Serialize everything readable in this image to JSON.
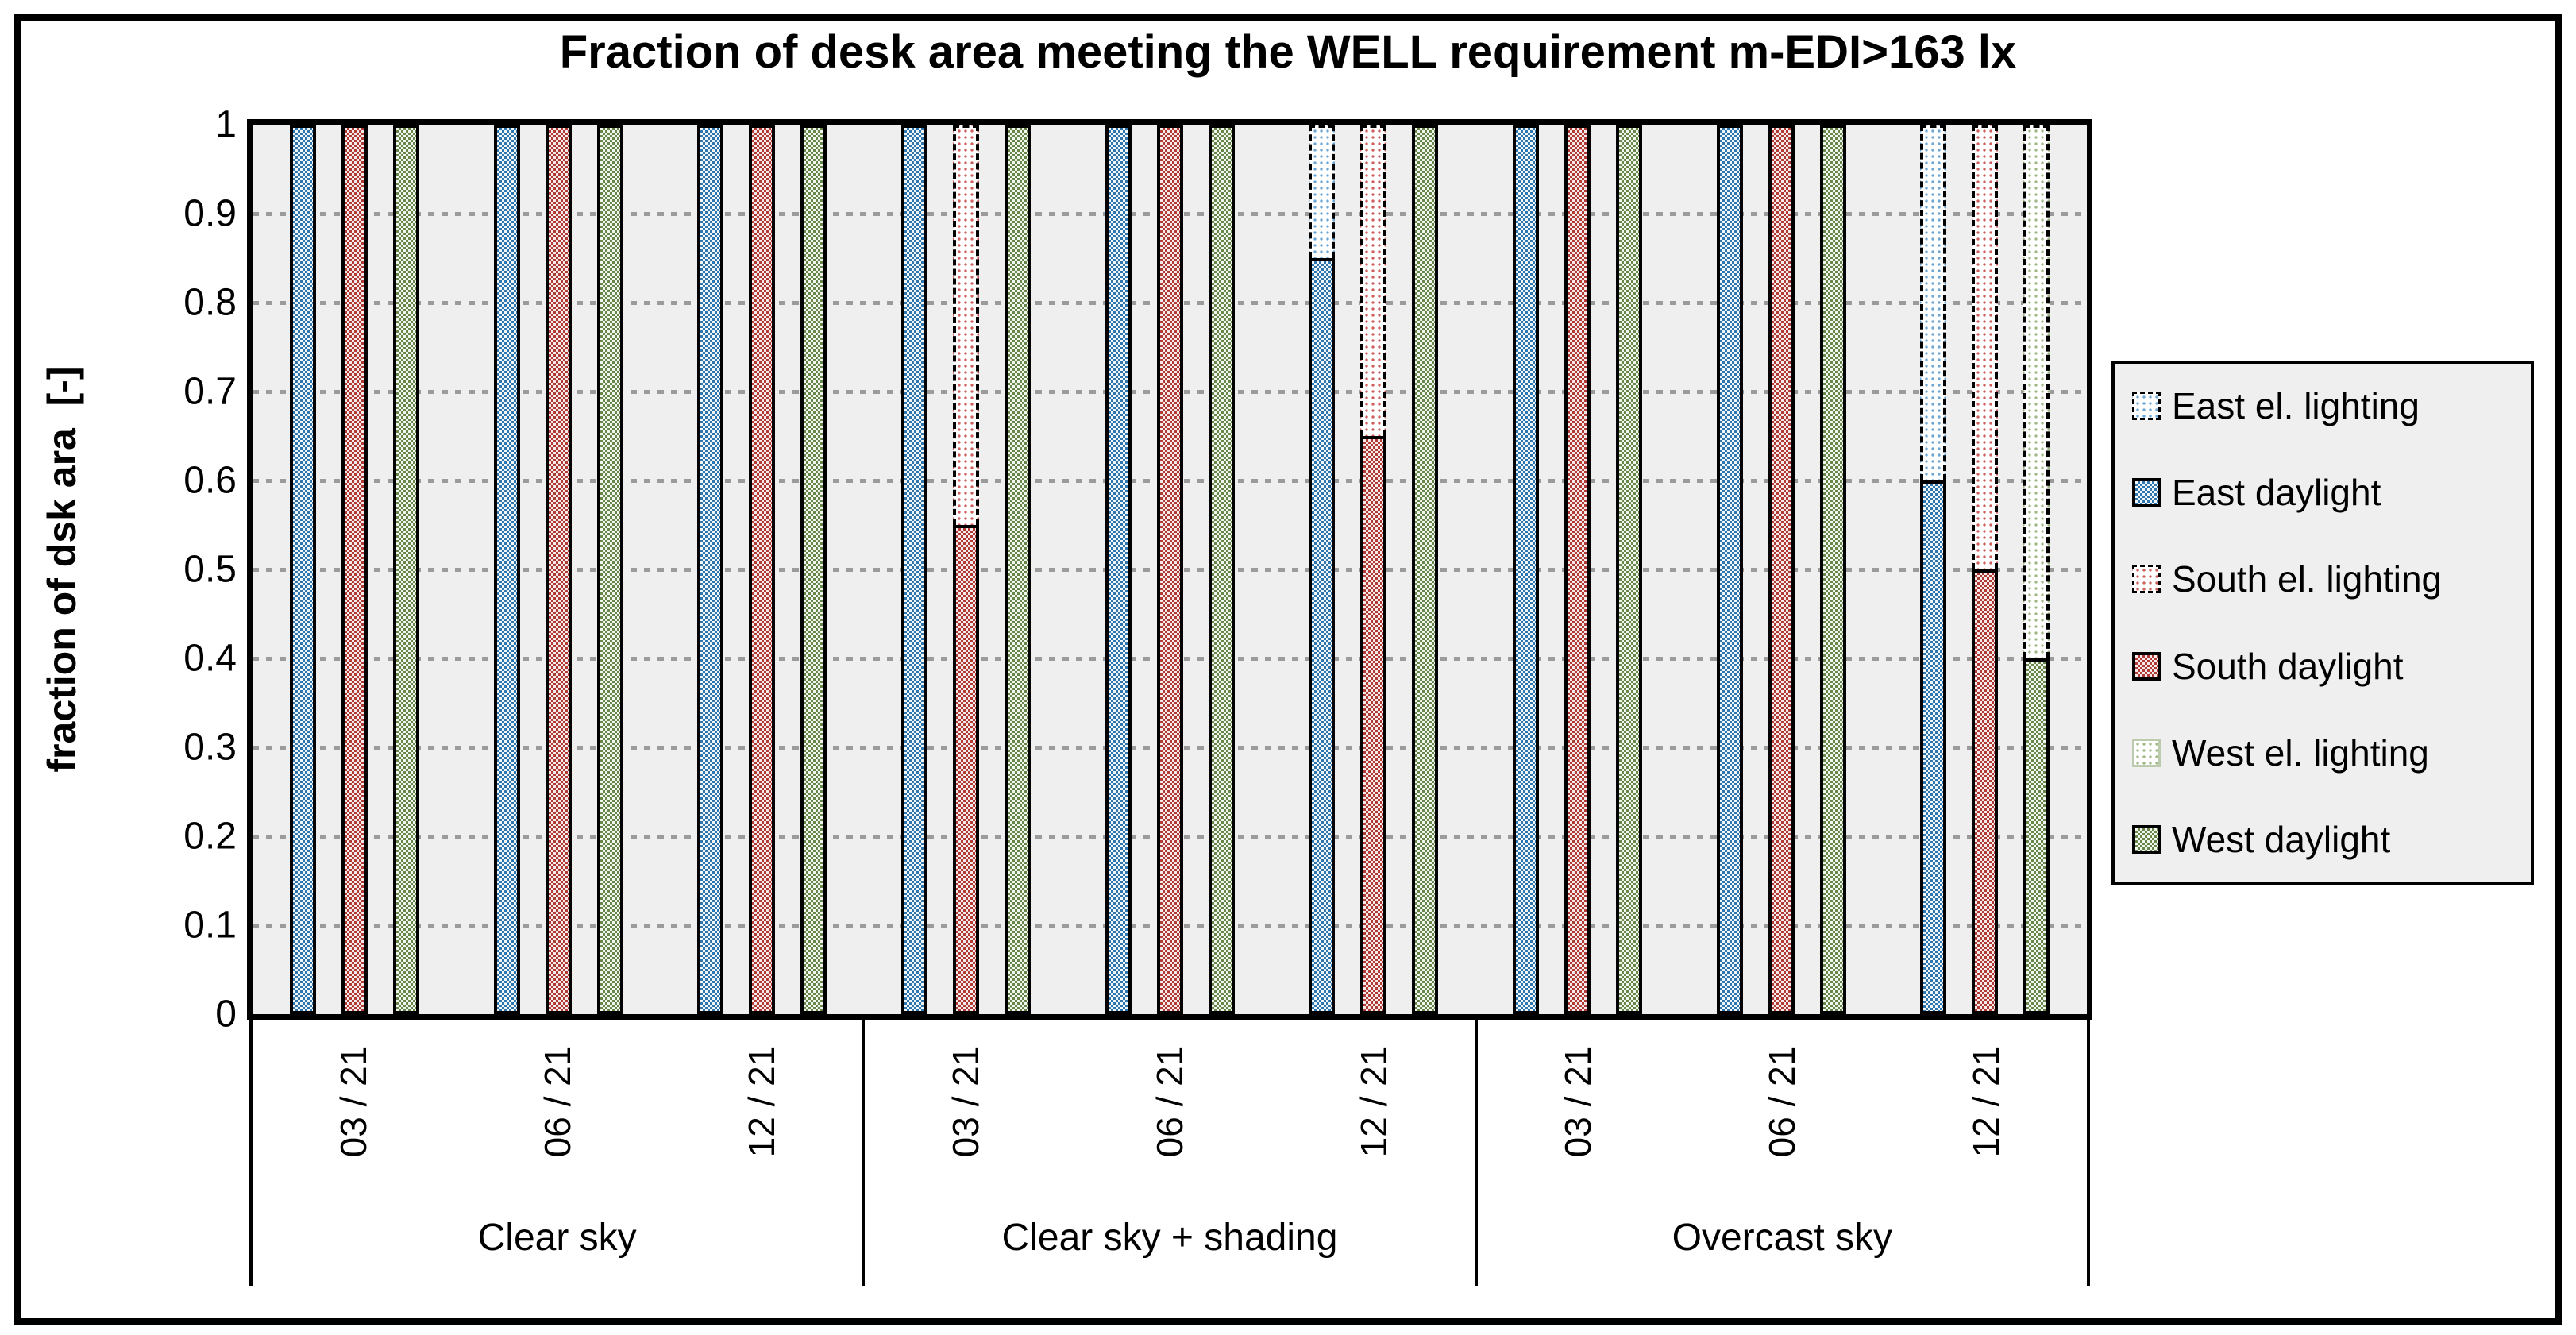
{
  "title": "Fraction of desk area meeting the WELL requirement m-EDI>163 lx",
  "y_axis": {
    "label": "fraction of dsk ara  [-]",
    "ticks": [
      "1",
      "0.9",
      "0.8",
      "0.7",
      "0.6",
      "0.5",
      "0.4",
      "0.3",
      "0.2",
      "0.1",
      "0"
    ]
  },
  "x_axis": {
    "group_labels": [
      "Clear sky",
      "Clear sky + shading",
      "Overcast sky"
    ],
    "date_labels": [
      "03 / 21",
      "06 / 21",
      "12 / 21"
    ]
  },
  "legend": {
    "items": [
      {
        "label": "East el. lighting",
        "fill": "east_el_lighting",
        "border": "dashed"
      },
      {
        "label": "East daylight",
        "fill": "east_daylight",
        "border": "solid"
      },
      {
        "label": "South el. lighting",
        "fill": "south_el_lighting",
        "border": "dashed"
      },
      {
        "label": "South daylight",
        "fill": "south_daylight",
        "border": "solid"
      },
      {
        "label": "West el. lighting",
        "fill": "west_el_lighting",
        "border": "light"
      },
      {
        "label": "West daylight",
        "fill": "west_daylight",
        "border": "solid"
      }
    ]
  },
  "colors": {
    "east_daylight": "#2e76ad",
    "east_el_lighting": "#6ca6d4",
    "south_daylight": "#b03a36",
    "south_el_lighting": "#cf5f5f",
    "west_daylight": "#67874a",
    "west_el_lighting": "#9fb886",
    "plot_background": "#efefef",
    "gridline": "#9b9b9b",
    "border": "#000000"
  },
  "chart_data": {
    "type": "bar",
    "stacked": true,
    "title": "Fraction of desk area meeting the WELL requirement m-EDI>163 lx",
    "xlabel": "",
    "ylabel": "fraction of dsk ara  [-]",
    "ylim": [
      0,
      1
    ],
    "grid": "horizontal-dotted",
    "legend_position": "right",
    "orientations": [
      "East",
      "South",
      "West"
    ],
    "groups": [
      {
        "label": "Clear sky",
        "subgroups": [
          {
            "date": "03 / 21",
            "daylight": [
              1,
              1,
              1
            ],
            "el_lighting": [
              0,
              0,
              0
            ]
          },
          {
            "date": "06 / 21",
            "daylight": [
              1,
              1,
              1
            ],
            "el_lighting": [
              0,
              0,
              0
            ]
          },
          {
            "date": "12 / 21",
            "daylight": [
              1,
              1,
              1
            ],
            "el_lighting": [
              0,
              0,
              0
            ]
          }
        ]
      },
      {
        "label": "Clear sky + shading",
        "subgroups": [
          {
            "date": "03 / 21",
            "daylight": [
              1,
              0.55,
              1
            ],
            "el_lighting": [
              0,
              0.45,
              0
            ]
          },
          {
            "date": "06 / 21",
            "daylight": [
              1,
              1,
              1
            ],
            "el_lighting": [
              0,
              0,
              0
            ]
          },
          {
            "date": "12 / 21",
            "daylight": [
              0.85,
              0.65,
              1
            ],
            "el_lighting": [
              0.15,
              0.35,
              0
            ]
          }
        ]
      },
      {
        "label": "Overcast sky",
        "subgroups": [
          {
            "date": "03 / 21",
            "daylight": [
              1,
              1,
              1
            ],
            "el_lighting": [
              0,
              0,
              0
            ]
          },
          {
            "date": "06 / 21",
            "daylight": [
              1,
              1,
              1
            ],
            "el_lighting": [
              0,
              0,
              0
            ]
          },
          {
            "date": "12 / 21",
            "daylight": [
              0.6,
              0.5,
              0.4
            ],
            "el_lighting": [
              0.4,
              0.5,
              0.6
            ]
          }
        ]
      }
    ]
  }
}
